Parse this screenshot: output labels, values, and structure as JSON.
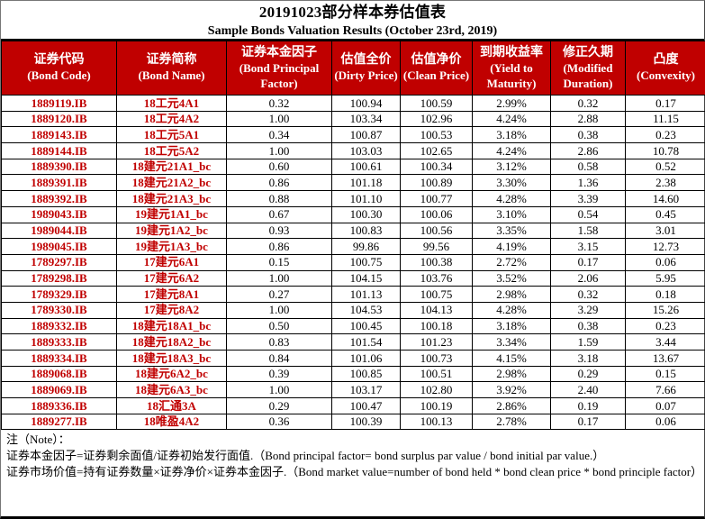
{
  "title": "20191023部分样本券估值表",
  "subtitle": "Sample Bonds Valuation Results (October 23rd, 2019)",
  "colors": {
    "header_bg": "#c00000",
    "red_text": "#c00000",
    "border": "#000000"
  },
  "table": {
    "columns": [
      {
        "zh": "证券代码",
        "en": "(Bond Code)"
      },
      {
        "zh": "证券简称",
        "en": "(Bond Name)"
      },
      {
        "zh": "证券本金因子",
        "en": "(Bond Principal Factor)"
      },
      {
        "zh": "估值全价",
        "en": "(Dirty Price)"
      },
      {
        "zh": "估值净价",
        "en": "(Clean Price)"
      },
      {
        "zh": "到期收益率",
        "en": "(Yield to Maturity)"
      },
      {
        "zh": "修正久期",
        "en": "(Modified Duration)"
      },
      {
        "zh": "凸度",
        "en": "(Convexity)"
      }
    ],
    "rows": [
      [
        "1889119.IB",
        "18工元4A1",
        "0.32",
        "100.94",
        "100.59",
        "2.99%",
        "0.32",
        "0.17"
      ],
      [
        "1889120.IB",
        "18工元4A2",
        "1.00",
        "103.34",
        "102.96",
        "4.24%",
        "2.88",
        "11.15"
      ],
      [
        "1889143.IB",
        "18工元5A1",
        "0.34",
        "100.87",
        "100.53",
        "3.18%",
        "0.38",
        "0.23"
      ],
      [
        "1889144.IB",
        "18工元5A2",
        "1.00",
        "103.03",
        "102.65",
        "4.24%",
        "2.86",
        "10.78"
      ],
      [
        "1889390.IB",
        "18建元21A1_bc",
        "0.60",
        "100.61",
        "100.34",
        "3.12%",
        "0.58",
        "0.52"
      ],
      [
        "1889391.IB",
        "18建元21A2_bc",
        "0.86",
        "101.18",
        "100.89",
        "3.30%",
        "1.36",
        "2.38"
      ],
      [
        "1889392.IB",
        "18建元21A3_bc",
        "0.88",
        "101.10",
        "100.77",
        "4.28%",
        "3.39",
        "14.60"
      ],
      [
        "1989043.IB",
        "19建元1A1_bc",
        "0.67",
        "100.30",
        "100.06",
        "3.10%",
        "0.54",
        "0.45"
      ],
      [
        "1989044.IB",
        "19建元1A2_bc",
        "0.93",
        "100.83",
        "100.56",
        "3.35%",
        "1.58",
        "3.01"
      ],
      [
        "1989045.IB",
        "19建元1A3_bc",
        "0.86",
        "99.86",
        "99.56",
        "4.19%",
        "3.15",
        "12.73"
      ],
      [
        "1789297.IB",
        "17建元6A1",
        "0.15",
        "100.75",
        "100.38",
        "2.72%",
        "0.17",
        "0.06"
      ],
      [
        "1789298.IB",
        "17建元6A2",
        "1.00",
        "104.15",
        "103.76",
        "3.52%",
        "2.06",
        "5.95"
      ],
      [
        "1789329.IB",
        "17建元8A1",
        "0.27",
        "101.13",
        "100.75",
        "2.98%",
        "0.32",
        "0.18"
      ],
      [
        "1789330.IB",
        "17建元8A2",
        "1.00",
        "104.53",
        "104.13",
        "4.28%",
        "3.29",
        "15.26"
      ],
      [
        "1889332.IB",
        "18建元18A1_bc",
        "0.50",
        "100.45",
        "100.18",
        "3.18%",
        "0.38",
        "0.23"
      ],
      [
        "1889333.IB",
        "18建元18A2_bc",
        "0.83",
        "101.54",
        "101.23",
        "3.34%",
        "1.59",
        "3.44"
      ],
      [
        "1889334.IB",
        "18建元18A3_bc",
        "0.84",
        "101.06",
        "100.73",
        "4.15%",
        "3.18",
        "13.67"
      ],
      [
        "1889068.IB",
        "18建元6A2_bc",
        "0.39",
        "100.85",
        "100.51",
        "2.98%",
        "0.29",
        "0.15"
      ],
      [
        "1889069.IB",
        "18建元6A3_bc",
        "1.00",
        "103.17",
        "102.80",
        "3.92%",
        "2.40",
        "7.66"
      ],
      [
        "1889336.IB",
        "18汇通3A",
        "0.29",
        "100.47",
        "100.19",
        "2.86%",
        "0.19",
        "0.07"
      ],
      [
        "1889277.IB",
        "18唯盈4A2",
        "0.36",
        "100.39",
        "100.13",
        "2.78%",
        "0.17",
        "0.06"
      ]
    ]
  },
  "notes": {
    "label": "注（Note）：",
    "lines": [
      "证券本金因子=证券剩余面值/证券初始发行面值.（Bond principal factor= bond surplus par value / bond initial par value.）",
      "证券市场价值=持有证券数量×证券净价×证券本金因子.（Bond market value=number of bond held * bond clean price * bond principle factor）"
    ]
  }
}
